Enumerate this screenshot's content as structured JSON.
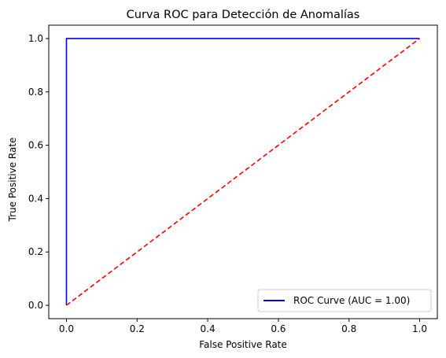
{
  "chart_data": {
    "type": "line",
    "title": "Curva ROC para Detección de Anomalías",
    "xlabel": "False Positive Rate",
    "ylabel": "True Positive Rate",
    "xlim": [
      -0.05,
      1.05
    ],
    "ylim": [
      -0.05,
      1.05
    ],
    "xticks": [
      0.0,
      0.2,
      0.4,
      0.6,
      0.8,
      1.0
    ],
    "yticks": [
      0.0,
      0.2,
      0.4,
      0.6,
      0.8,
      1.0
    ],
    "tick_labels_x": [
      "0.0",
      "0.2",
      "0.4",
      "0.6",
      "0.8",
      "1.0"
    ],
    "tick_labels_y": [
      "0.0",
      "0.2",
      "0.4",
      "0.6",
      "0.8",
      "1.0"
    ],
    "grid": false,
    "legend_position": "lower-right",
    "series": [
      {
        "name": "ROC Curve (AUC = 1.00)",
        "color": "#0000ff",
        "style": "solid",
        "in_legend": true,
        "x": [
          0.0,
          0.0,
          1.0
        ],
        "y": [
          0.0,
          1.0,
          1.0
        ]
      },
      {
        "name": "",
        "color": "#ff0000",
        "style": "dashed",
        "in_legend": false,
        "x": [
          0.0,
          1.0
        ],
        "y": [
          0.0,
          1.0
        ]
      }
    ]
  }
}
